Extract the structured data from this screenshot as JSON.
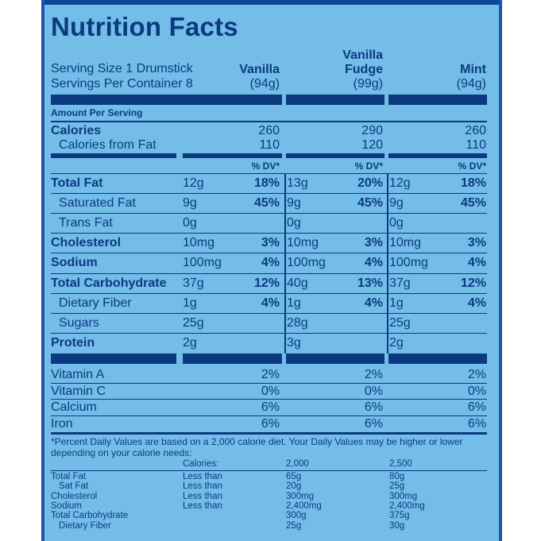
{
  "title": "Nutrition Facts",
  "serving": {
    "size": "Serving Size  1 Drumstick",
    "per_container": "Servings Per Container 8"
  },
  "columns": [
    {
      "name_line1": "",
      "name_line2": "Vanilla",
      "weight": "(94g)"
    },
    {
      "name_line1": "Vanilla",
      "name_line2": "Fudge",
      "weight": "(99g)"
    },
    {
      "name_line1": "",
      "name_line2": "Mint",
      "weight": "(94g)"
    }
  ],
  "amount_per_serving": "Amount Per Serving",
  "calories": {
    "label": "Calories",
    "values": [
      "260",
      "290",
      "260"
    ]
  },
  "calories_fat": {
    "label": "Calories from Fat",
    "values": [
      "110",
      "120",
      "110"
    ]
  },
  "dv_header": "% DV*",
  "nutrients": [
    {
      "label": "Total Fat",
      "bold": true,
      "indent": false,
      "vals": [
        {
          "a": "12g",
          "p": "18%"
        },
        {
          "a": "13g",
          "p": "20%"
        },
        {
          "a": "12g",
          "p": "18%"
        }
      ]
    },
    {
      "label": "Saturated Fat",
      "bold": false,
      "indent": true,
      "vals": [
        {
          "a": "9g",
          "p": "45%"
        },
        {
          "a": "9g",
          "p": "45%"
        },
        {
          "a": "9g",
          "p": "45%"
        }
      ]
    },
    {
      "label": "Trans Fat",
      "bold": false,
      "indent": true,
      "vals": [
        {
          "a": "0g",
          "p": ""
        },
        {
          "a": "0g",
          "p": ""
        },
        {
          "a": "0g",
          "p": ""
        }
      ]
    },
    {
      "label": "Cholesterol",
      "bold": true,
      "indent": false,
      "vals": [
        {
          "a": "10mg",
          "p": "3%"
        },
        {
          "a": "10mg",
          "p": "3%"
        },
        {
          "a": "10mg",
          "p": "3%"
        }
      ]
    },
    {
      "label": "Sodium",
      "bold": true,
      "indent": false,
      "vals": [
        {
          "a": "100mg",
          "p": "4%"
        },
        {
          "a": "100mg",
          "p": "4%"
        },
        {
          "a": "100mg",
          "p": "4%"
        }
      ]
    },
    {
      "label": "Total Carbohydrate",
      "bold": true,
      "indent": false,
      "vals": [
        {
          "a": "37g",
          "p": "12%"
        },
        {
          "a": "40g",
          "p": "13%"
        },
        {
          "a": "37g",
          "p": "12%"
        }
      ]
    },
    {
      "label": "Dietary Fiber",
      "bold": false,
      "indent": true,
      "vals": [
        {
          "a": "1g",
          "p": "4%"
        },
        {
          "a": "1g",
          "p": "4%"
        },
        {
          "a": "1g",
          "p": "4%"
        }
      ]
    },
    {
      "label": "Sugars",
      "bold": false,
      "indent": true,
      "vals": [
        {
          "a": "25g",
          "p": ""
        },
        {
          "a": "28g",
          "p": ""
        },
        {
          "a": "25g",
          "p": ""
        }
      ]
    },
    {
      "label": "Protein",
      "bold": true,
      "indent": false,
      "vals": [
        {
          "a": "2g",
          "p": ""
        },
        {
          "a": "3g",
          "p": ""
        },
        {
          "a": "2g",
          "p": ""
        }
      ]
    }
  ],
  "vitamins": [
    {
      "label": "Vitamin A",
      "values": [
        "2%",
        "2%",
        "2%"
      ]
    },
    {
      "label": "Vitamin C",
      "values": [
        "0%",
        "0%",
        "0%"
      ]
    },
    {
      "label": "Calcium",
      "values": [
        "6%",
        "6%",
        "6%"
      ]
    },
    {
      "label": "Iron",
      "values": [
        "6%",
        "6%",
        "6%"
      ]
    }
  ],
  "footnote_line1": "*Percent Daily Values are based on a 2,000 calorie diet. Your Daily Values may be higher or lower",
  "footnote_line2": "depending on your calorie needs:",
  "dv_table": {
    "calories_label": "Calories:",
    "col_2000": "2,000",
    "col_2500": "2,500",
    "rows": [
      {
        "label": "Total Fat",
        "indent": false,
        "limit": "Less than",
        "v2000": "65g",
        "v2500": "80g"
      },
      {
        "label": "Sat Fat",
        "indent": true,
        "limit": "Less than",
        "v2000": "20g",
        "v2500": "25g"
      },
      {
        "label": "Cholesterol",
        "indent": false,
        "limit": "Less than",
        "v2000": "300mg",
        "v2500": "300mg"
      },
      {
        "label": "Sodium",
        "indent": false,
        "limit": "Less than",
        "v2000": "2,400mg",
        "v2500": "2,400mg"
      },
      {
        "label": "Total Carbohydrate",
        "indent": false,
        "limit": "",
        "v2000": "300g",
        "v2500": "375g"
      },
      {
        "label": "Dietary Fiber",
        "indent": true,
        "limit": "",
        "v2000": "25g",
        "v2500": "30g"
      }
    ]
  },
  "colors": {
    "background": "#74bde8",
    "ink": "#0b3a80",
    "frame": "#0b4597"
  }
}
